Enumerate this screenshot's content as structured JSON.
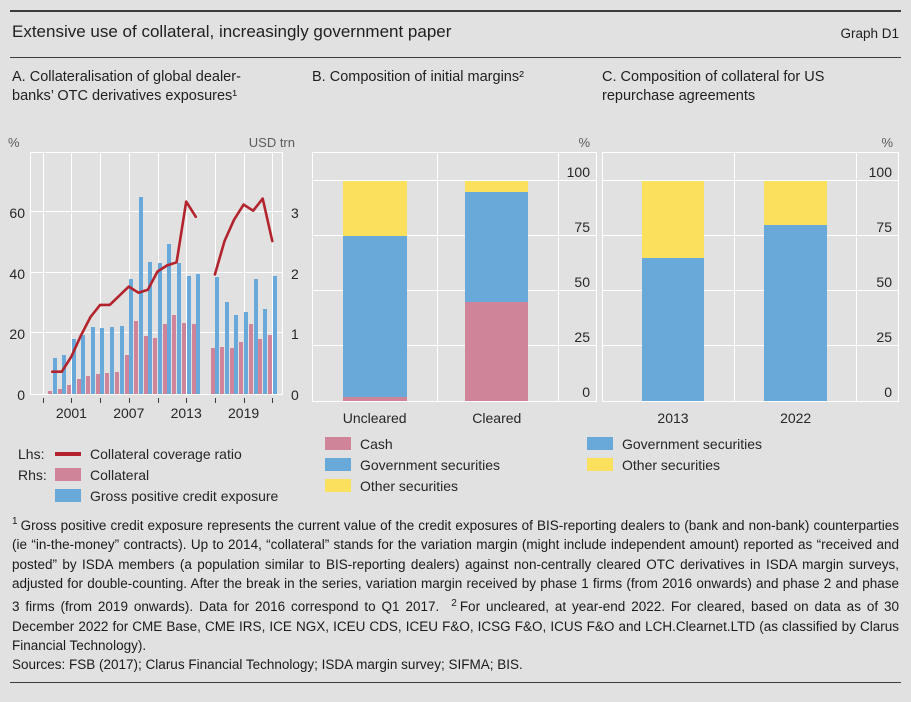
{
  "header": {
    "title": "Extensive use of collateral, increasingly government paper",
    "graph_label": "Graph D1"
  },
  "colors": {
    "background": "#e1e1e1",
    "grid": "#ffffff",
    "red_line": "#b2232d",
    "bar_pink": "#cf8499",
    "bar_blue": "#69a9d9",
    "bar_yellow": "#fae05c",
    "rule": "#3c3c3c",
    "text": "#262626"
  },
  "chart_data": [
    {
      "panel": "A",
      "type": "bar+line",
      "title": "A. Collateralisation of global dealer-banks’ OTC derivatives exposures¹",
      "lhs_prefix": "Lhs:",
      "rhs_prefix": "Rhs:",
      "left_axis": {
        "label": "%",
        "ticks": [
          0,
          20,
          40,
          60
        ],
        "range": [
          0,
          80
        ]
      },
      "right_axis": {
        "label": "USD trn",
        "ticks": [
          0,
          1,
          2,
          3
        ],
        "range": [
          0,
          4
        ]
      },
      "x_ticks": [
        1998,
        2001,
        2004,
        2007,
        2010,
        2013,
        2016,
        2019,
        2022
      ],
      "x_labels": [
        2001,
        2007,
        2013,
        2019
      ],
      "years": [
        1999,
        2000,
        2001,
        2002,
        2003,
        2004,
        2005,
        2006,
        2007,
        2008,
        2009,
        2010,
        2011,
        2012,
        2013,
        2014,
        2015,
        2016,
        2017,
        2018,
        2019,
        2020,
        2021,
        2022
      ],
      "series_break_year": 2015,
      "series": [
        {
          "name": "Collateral coverage ratio",
          "type": "line",
          "axis": "lhs",
          "color": "red_line",
          "values": [
            8,
            8,
            13,
            20,
            26,
            30,
            30,
            33,
            36,
            34,
            35,
            41,
            43,
            44,
            64,
            59,
            null,
            40,
            51,
            58,
            63,
            61,
            65,
            51
          ]
        },
        {
          "name": "Collateral",
          "type": "bar",
          "axis": "rhs",
          "color": "bar_pink",
          "values": [
            0.05,
            0.08,
            0.15,
            0.25,
            0.3,
            0.33,
            0.35,
            0.37,
            0.65,
            1.2,
            0.95,
            0.92,
            1.15,
            1.3,
            1.17,
            1.15,
            null,
            0.75,
            0.78,
            0.75,
            0.85,
            1.15,
            0.9,
            0.97
          ]
        },
        {
          "name": "Gross positive credit exposure",
          "type": "bar",
          "axis": "rhs",
          "color": "bar_blue",
          "values": [
            0.6,
            0.65,
            0.9,
            0.98,
            1.1,
            1.08,
            1.1,
            1.12,
            1.9,
            3.25,
            2.17,
            2.15,
            2.47,
            2.15,
            1.95,
            1.97,
            null,
            1.92,
            1.52,
            1.3,
            1.35,
            1.9,
            1.4,
            1.95
          ]
        }
      ]
    },
    {
      "panel": "B",
      "type": "stacked-bar",
      "title": "B. Composition of initial margins²",
      "axis": {
        "label": "%",
        "ticks": [
          0,
          25,
          50,
          75,
          100
        ],
        "range": [
          0,
          113.5
        ]
      },
      "categories": [
        "Uncleared",
        "Cleared"
      ],
      "series": [
        {
          "name": "Cash",
          "color": "bar_pink",
          "values": [
            2,
            45
          ]
        },
        {
          "name": "Government securities",
          "color": "bar_blue",
          "values": [
            73,
            50
          ]
        },
        {
          "name": "Other securities",
          "color": "bar_yellow",
          "values": [
            25,
            5
          ]
        }
      ]
    },
    {
      "panel": "C",
      "type": "stacked-bar",
      "title": "C. Composition of collateral for US repurchase agreements",
      "axis": {
        "label": "%",
        "ticks": [
          0,
          25,
          50,
          75,
          100
        ],
        "range": [
          0,
          113.5
        ]
      },
      "categories": [
        "2013",
        "2022"
      ],
      "series": [
        {
          "name": "Government securities",
          "color": "bar_blue",
          "values": [
            65,
            80
          ]
        },
        {
          "name": "Other securities",
          "color": "bar_yellow",
          "values": [
            35,
            20
          ]
        }
      ]
    }
  ],
  "footnotes": {
    "marker1": "1",
    "text1": "Gross positive credit exposure represents the current value of the credit exposures of BIS-reporting dealers to (bank and non-bank) counterparties (ie “in-the-money” contracts). Up to 2014, “collateral” stands for the variation margin (might include independent amount) reported as “received and posted” by ISDA members (a population similar to BIS-reporting dealers) against non-centrally cleared OTC derivatives in ISDA margin surveys, adjusted for double-counting. After the break in the series, variation margin received by phase 1 firms (from 2016 onwards) and phase 2 and phase 3 firms (from 2019 onwards). Data for 2016 correspond to Q1 2017.",
    "marker2": "2",
    "text2": "For uncleared, at year-end 2022. For cleared, based on data as of 30 December 2022 for CME Base, CME IRS, ICE NGX, ICEU CDS, ICEU F&O, ICSG F&O, ICUS F&O and LCH.Clearnet.LTD (as classified by Clarus Financial Technology)."
  },
  "sources": "Sources: FSB (2017); Clarus Financial Technology; ISDA margin survey; SIFMA; BIS."
}
